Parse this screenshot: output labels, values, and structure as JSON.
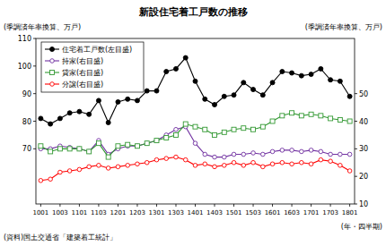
{
  "chart_data": {
    "type": "line",
    "title": "新設住宅着工戸数の推移",
    "ylabel": "(季調済年率換算、万戸)",
    "y2label": "(季調済年率換算、万戸)",
    "xlabel": "(年・四半期)",
    "source": "(資料)国土交通省「建築着工統計」",
    "categories": [
      "1001",
      null,
      "1003",
      null,
      "1101",
      null,
      "1103",
      null,
      "1201",
      null,
      "1203",
      null,
      "1301",
      null,
      "1303",
      null,
      "1401",
      null,
      "1403",
      null,
      "1501",
      null,
      "1503",
      null,
      "1601",
      null,
      "1603",
      null,
      "1701",
      null,
      "1703",
      null,
      "1801"
    ],
    "ylim": [
      50,
      110
    ],
    "yticks": [
      70,
      80,
      90,
      100,
      110
    ],
    "y2lim": [
      10,
      70
    ],
    "y2ticks": [
      10,
      20,
      30,
      40,
      50
    ],
    "legend": "top-left",
    "grid": false,
    "series": [
      {
        "name": "住宅着工戸数(左目盛)",
        "color": "#000000",
        "marker": "circle",
        "values": [
          81,
          79,
          81,
          83,
          83.5,
          82.5,
          87.5,
          79.5,
          87,
          88,
          87.5,
          91,
          91,
          98,
          99,
          103,
          94.5,
          88,
          86,
          89,
          89.5,
          94,
          91.5,
          89.5,
          94,
          98,
          97.5,
          96.5,
          97,
          99,
          95,
          94.5,
          89
        ]
      },
      {
        "name": "持家(右目盛)",
        "color": "#7030a0",
        "marker": "open-circle",
        "axis": "y2",
        "values": [
          30,
          30,
          31,
          30.5,
          30,
          29,
          33,
          28,
          30,
          31,
          31,
          32,
          33,
          35,
          37,
          38,
          32,
          28,
          27,
          27,
          28,
          28,
          28.5,
          28,
          29,
          29.5,
          29.5,
          29,
          29.5,
          29,
          28,
          28,
          28
        ]
      },
      {
        "name": "貸家(右目盛)",
        "color": "#339933",
        "marker": "open-square",
        "axis": "y2",
        "values": [
          31,
          29,
          30,
          30,
          30,
          29,
          32,
          27,
          31,
          31.5,
          31,
          32,
          33,
          34,
          35,
          39,
          38,
          37,
          35,
          36,
          37,
          37.5,
          37,
          38,
          40,
          42,
          43,
          42,
          42.5,
          42,
          41,
          40.5,
          40
        ]
      },
      {
        "name": "分譲(右目盛)",
        "color": "#ff0000",
        "marker": "open-circle",
        "axis": "y2",
        "values": [
          18.5,
          19,
          21.5,
          22,
          22.5,
          23.5,
          24,
          23,
          23.5,
          24,
          24.5,
          25,
          26,
          26.5,
          27,
          26,
          24,
          24.5,
          23.5,
          24,
          25,
          24,
          25,
          23.5,
          24.5,
          25,
          24.5,
          25,
          24.5,
          26,
          25.5,
          24,
          22
        ]
      }
    ]
  }
}
